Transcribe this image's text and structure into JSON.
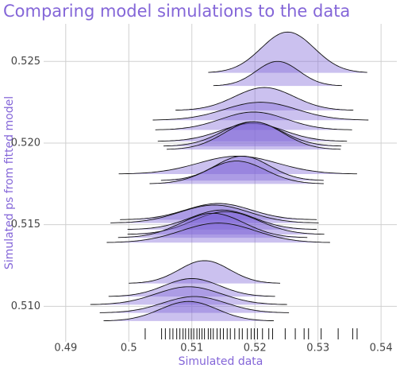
{
  "chart_data": {
    "type": "ridgeline",
    "title": "Comparing model simulations to the data",
    "x_label": "Simulated data",
    "y_label": "Simulated ps from fitted model",
    "xlim": [
      0.4865,
      0.5425
    ],
    "ylim": [
      0.5089,
      0.5273
    ],
    "xticks": [
      0.49,
      0.5,
      0.51,
      0.52,
      0.53,
      0.54
    ],
    "yticks": [
      {
        "value": 0.51,
        "label": "0.510"
      },
      {
        "value": 0.515,
        "label": "0.515"
      },
      {
        "value": 0.52,
        "label": "0.520"
      },
      {
        "value": 0.525,
        "label": "0.525"
      }
    ],
    "grid": true,
    "color": "#7e63d6",
    "ridges": [
      {
        "baseline": 0.5243,
        "mean": 0.5252,
        "sd": 0.0042,
        "height": 0.0025
      },
      {
        "baseline": 0.5235,
        "mean": 0.5236,
        "sd": 0.0034,
        "height": 0.0015
      },
      {
        "baseline": 0.522,
        "mean": 0.5215,
        "sd": 0.0047,
        "height": 0.0014
      },
      {
        "baseline": 0.5214,
        "mean": 0.5209,
        "sd": 0.0057,
        "height": 0.0011
      },
      {
        "baseline": 0.5208,
        "mean": 0.5198,
        "sd": 0.0052,
        "height": 0.0011
      },
      {
        "baseline": 0.5201,
        "mean": 0.5196,
        "sd": 0.005,
        "height": 0.0011
      },
      {
        "baseline": 0.5198,
        "mean": 0.5196,
        "sd": 0.0047,
        "height": 0.0015
      },
      {
        "baseline": 0.5196,
        "mean": 0.5198,
        "sd": 0.0046,
        "height": 0.0017
      },
      {
        "baseline": 0.5181,
        "mean": 0.5173,
        "sd": 0.0063,
        "height": 0.0011
      },
      {
        "baseline": 0.5177,
        "mean": 0.518,
        "sd": 0.0043,
        "height": 0.0015
      },
      {
        "baseline": 0.5175,
        "mean": 0.5171,
        "sd": 0.0046,
        "height": 0.0014
      },
      {
        "baseline": 0.5153,
        "mean": 0.5142,
        "sd": 0.0052,
        "height": 0.001
      },
      {
        "baseline": 0.5151,
        "mean": 0.5136,
        "sd": 0.0055,
        "height": 0.0011
      },
      {
        "baseline": 0.5147,
        "mean": 0.5148,
        "sd": 0.005,
        "height": 0.0012
      },
      {
        "baseline": 0.5144,
        "mean": 0.5154,
        "sd": 0.0052,
        "height": 0.0014
      },
      {
        "baseline": 0.5142,
        "mean": 0.5133,
        "sd": 0.005,
        "height": 0.0015
      },
      {
        "baseline": 0.5139,
        "mean": 0.5142,
        "sd": 0.0059,
        "height": 0.0012
      },
      {
        "baseline": 0.5114,
        "mean": 0.512,
        "sd": 0.004,
        "height": 0.0014
      },
      {
        "baseline": 0.5106,
        "mean": 0.51,
        "sd": 0.0044,
        "height": 0.0011
      },
      {
        "baseline": 0.5101,
        "mean": 0.5095,
        "sd": 0.0052,
        "height": 0.0011
      },
      {
        "baseline": 0.5096,
        "mean": 0.5104,
        "sd": 0.005,
        "height": 0.001
      },
      {
        "baseline": 0.5091,
        "mean": 0.5095,
        "sd": 0.0045,
        "height": 0.0012
      }
    ],
    "rug": [
      0.5026,
      0.5052,
      0.5058,
      0.5065,
      0.507,
      0.5076,
      0.5081,
      0.5086,
      0.509,
      0.5095,
      0.5099,
      0.5103,
      0.5108,
      0.5112,
      0.5116,
      0.512,
      0.5126,
      0.513,
      0.5134,
      0.514,
      0.5145,
      0.515,
      0.5156,
      0.5161,
      0.5168,
      0.5175,
      0.518,
      0.5188,
      0.5194,
      0.5199,
      0.5204,
      0.5212,
      0.5222,
      0.5228,
      0.5248,
      0.5264,
      0.5278,
      0.5285,
      0.5305,
      0.5332,
      0.5355,
      0.5362
    ]
  }
}
